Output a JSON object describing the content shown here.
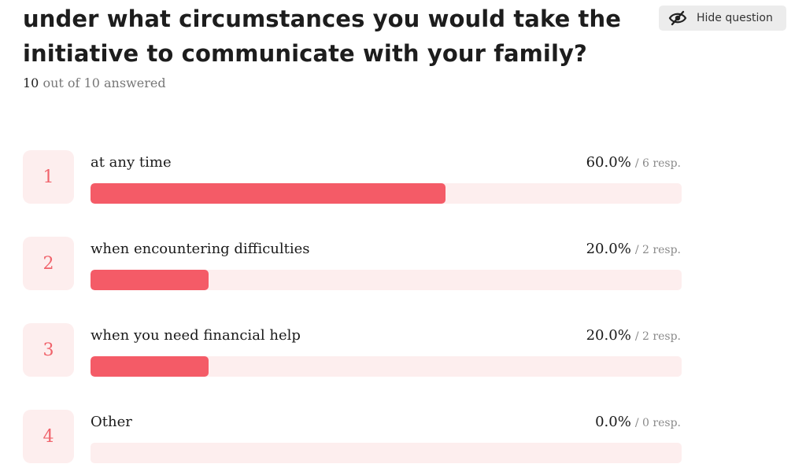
{
  "question": {
    "title": "under what circumstances you would take the initiative to communicate with your family?",
    "answered_count": "10",
    "answered_suffix": "out of 10 answered"
  },
  "hide_button": {
    "label": "Hide question",
    "icon": "eye-slash-icon"
  },
  "colors": {
    "accent": "#f45b67",
    "accent_light": "#fdeeee",
    "badge_text": "#f0636b"
  },
  "options": [
    {
      "index": "1",
      "label": "at any time",
      "percent": "60.0%",
      "responses": "/ 6 resp.",
      "fraction": 0.6
    },
    {
      "index": "2",
      "label": "when encountering difficulties",
      "percent": "20.0%",
      "responses": "/ 2 resp.",
      "fraction": 0.2
    },
    {
      "index": "3",
      "label": "when you need financial help",
      "percent": "20.0%",
      "responses": "/ 2 resp.",
      "fraction": 0.2
    },
    {
      "index": "4",
      "label": "Other",
      "percent": "0.0%",
      "responses": "/ 0 resp.",
      "fraction": 0.0
    }
  ]
}
